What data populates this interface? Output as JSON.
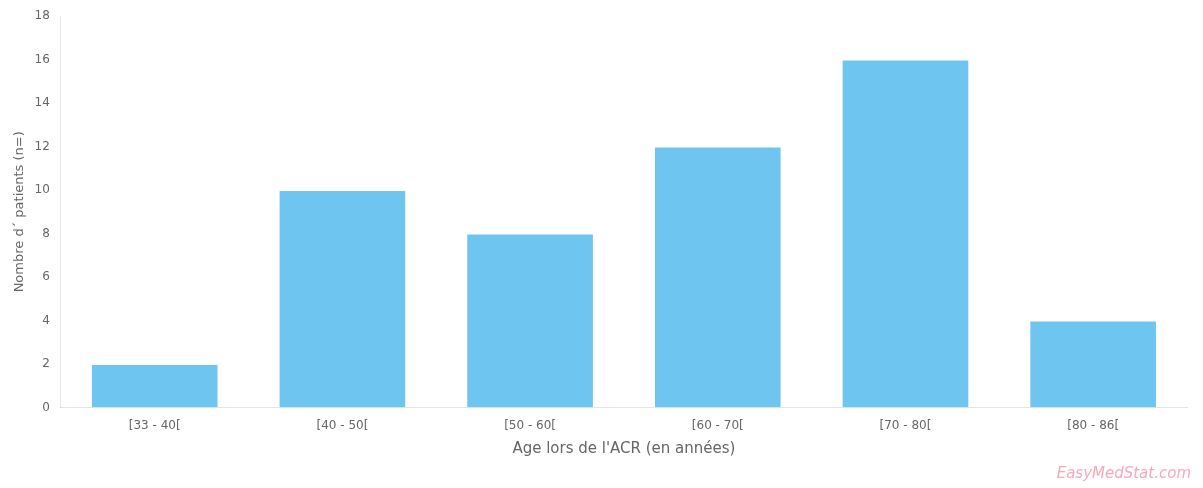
{
  "chart_data": {
    "type": "bar",
    "categories": [
      "[33 - 40[",
      "[40 - 50[",
      "[50 - 60[",
      "[60 - 70[",
      "[70 - 80[",
      "[80 - 86["
    ],
    "values": [
      2,
      10,
      8,
      12,
      16,
      4
    ],
    "color": "#6EC6F0",
    "x_label": "Age lors de l'ACR (en années)",
    "y_label": "Nombre d´ patients (n=)",
    "ylim": [
      0,
      18
    ],
    "yticks": [
      0,
      2,
      4,
      6,
      8,
      10,
      12,
      14,
      16,
      18
    ],
    "grid": false,
    "annotations": [
      "EasyMedStat.com"
    ]
  }
}
